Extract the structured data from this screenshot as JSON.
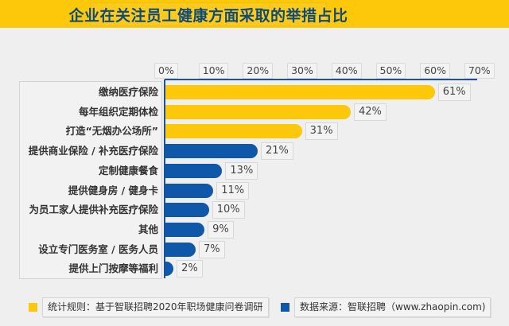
{
  "header": {
    "title": "企业在关注员工健康方面采取的举措占比"
  },
  "colors": {
    "yellow": "#fdc70a",
    "blue": "#0f57a8",
    "title_text": "#0e4a78",
    "background": "#efefef"
  },
  "axis": {
    "ticks": [
      "0%",
      "10%",
      "20%",
      "30%",
      "40%",
      "50%",
      "60%",
      "70%"
    ]
  },
  "rows": [
    {
      "label": "缴纳医疗保险",
      "value": 61,
      "value_label": "61%",
      "color": "yellow"
    },
    {
      "label": "每年组织定期体检",
      "value": 42,
      "value_label": "42%",
      "color": "yellow"
    },
    {
      "label": "打造“无烟办公场所”",
      "value": 31,
      "value_label": "31%",
      "color": "yellow"
    },
    {
      "label": "提供商业保险 / 补充医疗保险",
      "value": 21,
      "value_label": "21%",
      "color": "blue"
    },
    {
      "label": "定制健康餐食",
      "value": 13,
      "value_label": "13%",
      "color": "blue"
    },
    {
      "label": "提供健身房 / 健身卡",
      "value": 11,
      "value_label": "11%",
      "color": "blue"
    },
    {
      "label": "为员工家人提供补充医疗保险",
      "value": 10,
      "value_label": "10%",
      "color": "blue"
    },
    {
      "label": "其他",
      "value": 9,
      "value_label": "9%",
      "color": "blue"
    },
    {
      "label": "设立专门医务室 / 医务人员",
      "value": 7,
      "value_label": "7%",
      "color": "blue"
    },
    {
      "label": "提供上门按摩等福利",
      "value": 2,
      "value_label": "2%",
      "color": "blue"
    }
  ],
  "legend": {
    "items": [
      {
        "color": "yellow",
        "text": "统计规则：基于智联招聘2020年职场健康问卷调研"
      },
      {
        "color": "blue",
        "text": "数据来源：智联招聘（www.zhaopin.com)"
      }
    ]
  },
  "chart_data": {
    "type": "bar",
    "orientation": "horizontal",
    "title": "企业在关注员工健康方面采取的举措占比",
    "categories": [
      "缴纳医疗保险",
      "每年组织定期体检",
      "打造“无烟办公场所”",
      "提供商业保险 / 补充医疗保险",
      "定制健康餐食",
      "提供健身房 / 健身卡",
      "为员工家人提供补充医疗保险",
      "其他",
      "设立专门医务室 / 医务人员",
      "提供上门按摩等福利"
    ],
    "values": [
      61,
      42,
      31,
      21,
      13,
      11,
      10,
      9,
      7,
      2
    ],
    "value_labels": [
      "61%",
      "42%",
      "31%",
      "21%",
      "13%",
      "11%",
      "10%",
      "9%",
      "7%",
      "2%"
    ],
    "bar_colors": [
      "#fdc70a",
      "#fdc70a",
      "#fdc70a",
      "#0f57a8",
      "#0f57a8",
      "#0f57a8",
      "#0f57a8",
      "#0f57a8",
      "#0f57a8",
      "#0f57a8"
    ],
    "xlabel": "",
    "ylabel": "",
    "xlim": [
      0,
      70
    ],
    "x_ticks": [
      "0%",
      "10%",
      "20%",
      "30%",
      "40%",
      "50%",
      "60%",
      "70%"
    ],
    "x_axis_position": "top",
    "grid": false,
    "legend_position": "bottom",
    "annotations": [
      "统计规则：基于智联招聘2020年职场健康问卷调研",
      "数据来源：智联招聘（www.zhaopin.com)"
    ]
  }
}
